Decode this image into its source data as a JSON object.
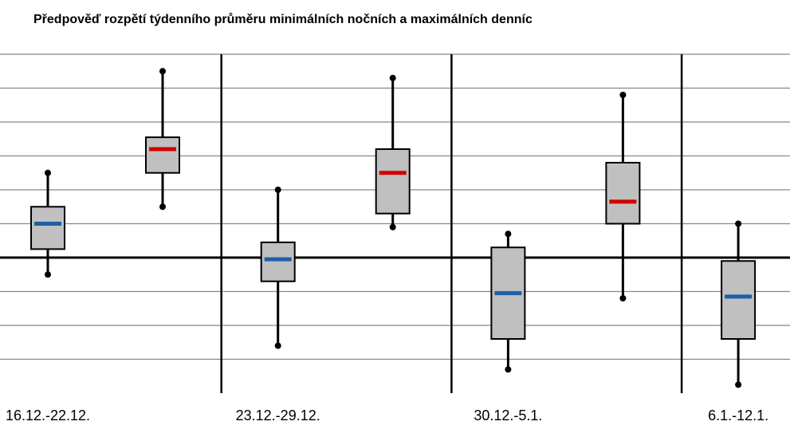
{
  "chart_data": {
    "type": "box",
    "title": "Předpověď rozpětí týdenního průměru minimálních nočních a maximálních denníc",
    "categories": [
      "16.12.-22.12.",
      "23.12.-29.12.",
      "30.12.-5.1.",
      "6.1.-12.1."
    ],
    "ylim": [
      -8,
      12
    ],
    "yticks": [
      -6,
      -4,
      -2,
      0,
      2,
      4,
      6,
      8,
      10,
      12
    ],
    "grid": true,
    "series": [
      {
        "color": "#1f5fa8",
        "min": [
          -1.0,
          -5.2,
          -6.6,
          -7.5
        ],
        "q1": [
          0.5,
          -1.4,
          -4.8,
          -4.8
        ],
        "median": [
          2.0,
          -0.1,
          -2.1,
          -2.3
        ],
        "q3": [
          3.0,
          0.9,
          0.6,
          -0.2
        ],
        "max": [
          5.0,
          4.0,
          1.4,
          2.0
        ]
      },
      {
        "color": "#d40000",
        "min": [
          3.0,
          1.8,
          -2.4,
          null
        ],
        "q1": [
          5.0,
          2.6,
          2.0,
          null
        ],
        "median": [
          6.4,
          5.0,
          3.3,
          null
        ],
        "q3": [
          7.1,
          6.4,
          5.6,
          null
        ],
        "max": [
          11.0,
          10.6,
          9.6,
          null
        ]
      }
    ]
  }
}
